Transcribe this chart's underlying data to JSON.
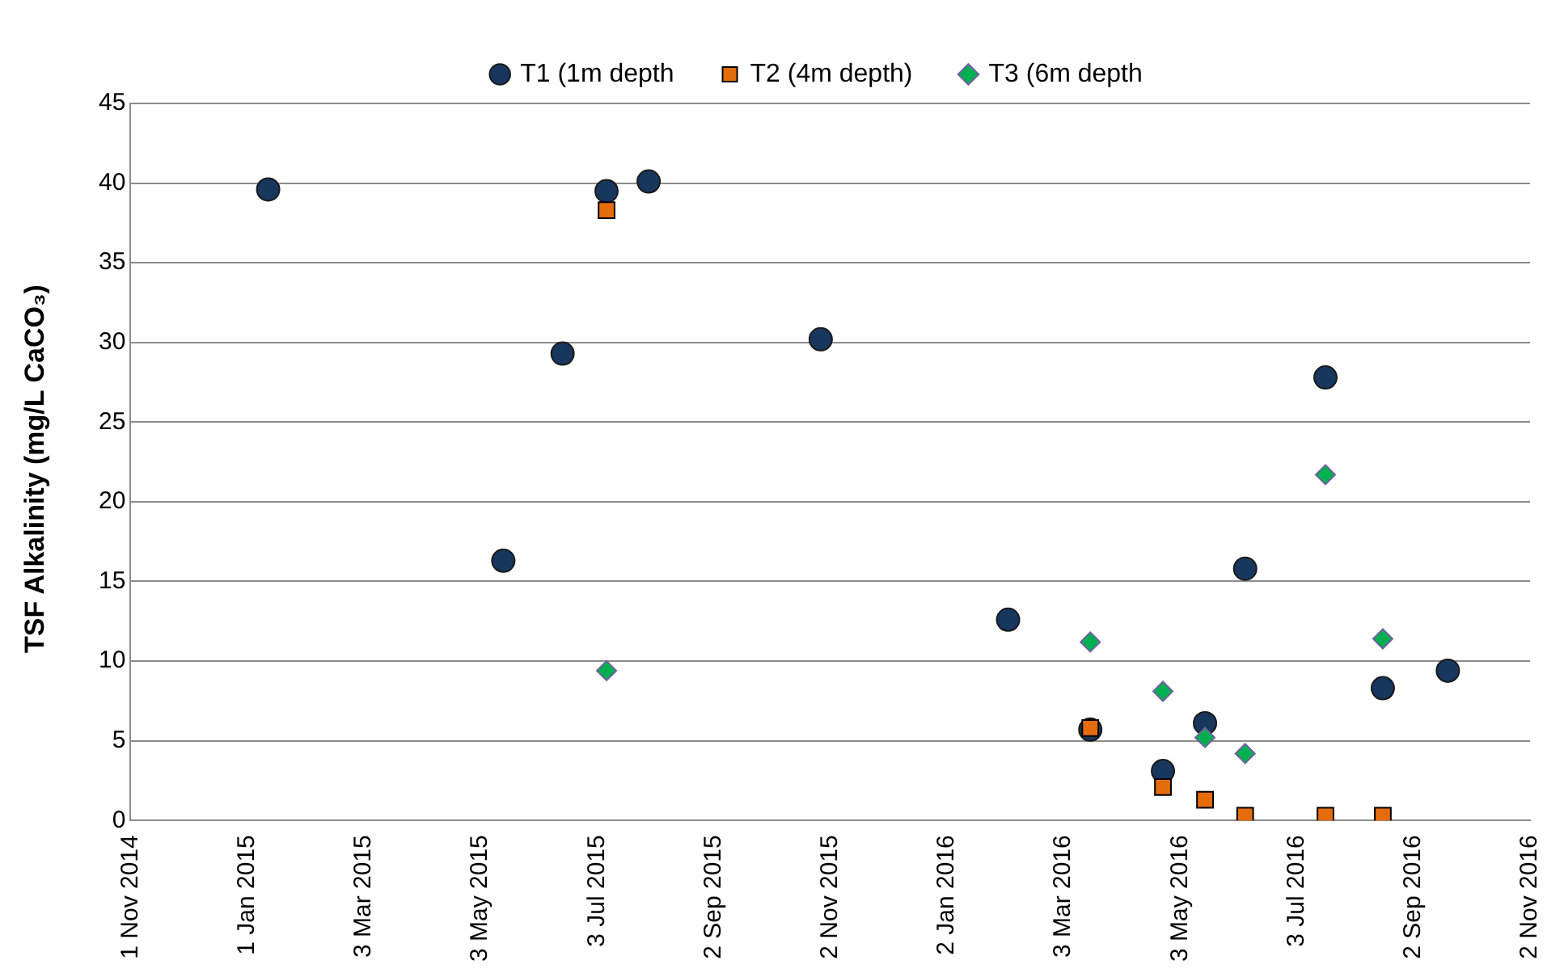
{
  "chart_data": {
    "type": "scatter",
    "ylabel": "TSF Alkalinity (mg/L CaCO₃)",
    "xlim": [
      "2014-11-01",
      "2016-11-02"
    ],
    "xticks": [
      {
        "value": "2014-11-01",
        "label": "1 Nov 2014"
      },
      {
        "value": "2015-01-01",
        "label": "1 Jan 2015"
      },
      {
        "value": "2015-03-03",
        "label": "3 Mar 2015"
      },
      {
        "value": "2015-05-03",
        "label": "3 May 2015"
      },
      {
        "value": "2015-07-03",
        "label": "3 Jul 2015"
      },
      {
        "value": "2015-09-02",
        "label": "2 Sep 2015"
      },
      {
        "value": "2015-11-02",
        "label": "2 Nov 2015"
      },
      {
        "value": "2016-01-02",
        "label": "2 Jan 2016"
      },
      {
        "value": "2016-03-03",
        "label": "3 Mar 2016"
      },
      {
        "value": "2016-05-03",
        "label": "3 May 2016"
      },
      {
        "value": "2016-07-03",
        "label": "3 Jul 2016"
      },
      {
        "value": "2016-09-02",
        "label": "2 Sep 2016"
      },
      {
        "value": "2016-11-02",
        "label": "2 Nov 2016"
      }
    ],
    "ylim": [
      0,
      45
    ],
    "yticks": [
      0,
      5,
      10,
      15,
      20,
      25,
      30,
      35,
      40,
      45
    ],
    "grid": "y",
    "legend": "top",
    "series": [
      {
        "name": "T1 (1m depth",
        "color": "#17375e",
        "marker": "circle",
        "x": [
          "2015-01-12",
          "2015-05-15",
          "2015-06-15",
          "2015-07-08",
          "2015-07-30",
          "2015-10-28",
          "2016-02-03",
          "2016-03-17",
          "2016-04-24",
          "2016-05-16",
          "2016-06-06",
          "2016-07-18",
          "2016-08-17",
          "2016-09-20"
        ],
        "values": [
          39.6,
          16.3,
          29.3,
          39.5,
          40.1,
          30.2,
          12.6,
          5.7,
          3.1,
          6.1,
          15.8,
          27.8,
          8.3,
          9.4
        ]
      },
      {
        "name": "T2 (4m depth)",
        "color": "#e46c0a",
        "marker": "square",
        "x": [
          "2015-07-08",
          "2016-03-17",
          "2016-04-24",
          "2016-05-16",
          "2016-06-06",
          "2016-07-18",
          "2016-08-17"
        ],
        "values": [
          38.3,
          5.8,
          2.1,
          1.3,
          0.3,
          0.3,
          0.3
        ]
      },
      {
        "name": "T3 (6m depth",
        "color": "#00b050",
        "marker": "diamond",
        "x": [
          "2015-07-08",
          "2016-03-17",
          "2016-04-24",
          "2016-05-16",
          "2016-06-06",
          "2016-07-18",
          "2016-08-17"
        ],
        "values": [
          9.4,
          11.2,
          8.1,
          5.2,
          4.2,
          21.7,
          11.4
        ]
      }
    ]
  }
}
